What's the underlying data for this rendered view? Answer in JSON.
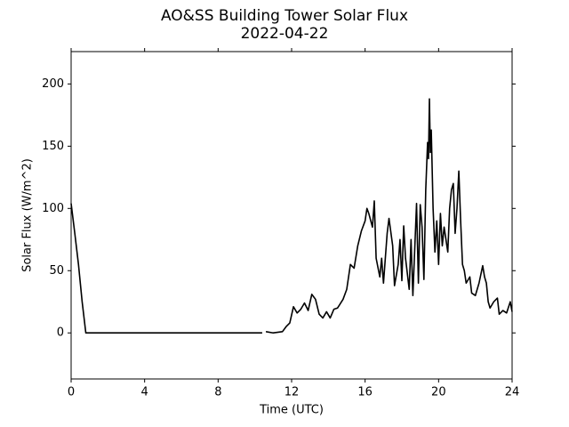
{
  "chart_data": {
    "type": "line",
    "title": "AO&SS Building Tower Solar Flux",
    "subtitle": "2022-04-22",
    "xlabel": "Time (UTC)",
    "ylabel": "Solar Flux (W/m^2)",
    "color": "#000000",
    "xlim": [
      0,
      24
    ],
    "xticks": [
      0,
      4,
      8,
      12,
      16,
      20,
      24
    ],
    "ylim": [
      -37,
      226
    ],
    "yticks": [
      0,
      50,
      100,
      150,
      200
    ],
    "x": [
      0,
      0.2,
      0.4,
      0.6,
      0.8,
      2,
      4,
      6,
      8,
      10.4,
      10.5,
      10.6,
      11,
      11.5,
      11.7,
      11.9,
      12.1,
      12.3,
      12.5,
      12.7,
      12.9,
      13.1,
      13.3,
      13.5,
      13.7,
      13.9,
      14.1,
      14.3,
      14.5,
      14.8,
      15.0,
      15.2,
      15.4,
      15.6,
      15.8,
      16.0,
      16.1,
      16.2,
      16.4,
      16.5,
      16.6,
      16.8,
      16.9,
      17.0,
      17.2,
      17.3,
      17.5,
      17.6,
      17.8,
      17.9,
      18.0,
      18.1,
      18.2,
      18.4,
      18.5,
      18.6,
      18.8,
      18.9,
      19.0,
      19.1,
      19.2,
      19.3,
      19.4,
      19.45,
      19.5,
      19.55,
      19.6,
      19.7,
      19.8,
      19.9,
      20.0,
      20.1,
      20.2,
      20.3,
      20.5,
      20.6,
      20.7,
      20.8,
      20.9,
      21.0,
      21.1,
      21.2,
      21.3,
      21.4,
      21.5,
      21.7,
      21.8,
      22.0,
      22.2,
      22.4,
      22.5,
      22.6,
      22.7,
      22.8,
      23.0,
      23.2,
      23.3,
      23.5,
      23.7,
      23.9,
      24.0
    ],
    "values": [
      104,
      80,
      55,
      25,
      0,
      0,
      0,
      0,
      0,
      0,
      null,
      1,
      0,
      1,
      5,
      8,
      21,
      16,
      19,
      24,
      18,
      31,
      27,
      15,
      12,
      17,
      12,
      19,
      20,
      27,
      35,
      55,
      52,
      70,
      82,
      90,
      100,
      96,
      85,
      106,
      60,
      45,
      60,
      40,
      80,
      92,
      70,
      38,
      55,
      75,
      42,
      86,
      60,
      35,
      75,
      30,
      104,
      40,
      103,
      85,
      43,
      115,
      153,
      140,
      188,
      145,
      163,
      100,
      65,
      90,
      55,
      96,
      70,
      85,
      65,
      100,
      115,
      120,
      80,
      100,
      130,
      90,
      55,
      50,
      40,
      45,
      32,
      30,
      40,
      54,
      45,
      40,
      25,
      20,
      25,
      28,
      15,
      18,
      16,
      25,
      17
    ]
  }
}
